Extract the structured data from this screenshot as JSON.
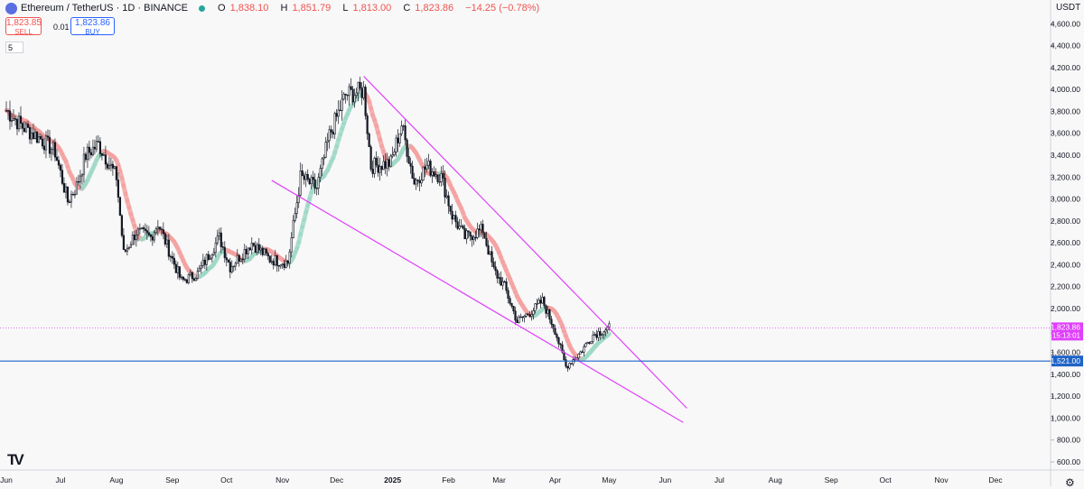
{
  "header": {
    "title": "Ethereum / TetherUS · 1D · BINANCE",
    "ohlc": [
      {
        "k": "O",
        "v": "1,838.10"
      },
      {
        "k": "H",
        "v": "1,851.79"
      },
      {
        "k": "L",
        "v": "1,813.00"
      },
      {
        "k": "C",
        "v": "1,823.86"
      }
    ],
    "change": "−14.25 (−0.78%)"
  },
  "trade": {
    "sell_price": "1,823.85",
    "sell_label": "SELL",
    "buy_price": "1,823.86",
    "buy_label": "BUY",
    "spread": "0.01",
    "ma_length": "5"
  },
  "axis_unit": "USDT",
  "colors": {
    "up": "#26a69a",
    "down": "#ef5350",
    "candle": "#131722",
    "trendline": "#e040fb",
    "price_tag": "#e040fb",
    "support": "#1e63c8",
    "ma_down": "#f4a0a0",
    "ma_up": "#9ed8c6"
  },
  "chart_data": {
    "type": "candlestick",
    "symbol": "ETHUSDT",
    "interval": "1D",
    "ylim": [
      600,
      4800
    ],
    "y_ticks": [
      600,
      800,
      1000,
      1200,
      1400,
      1600,
      1800,
      2000,
      2200,
      2400,
      2600,
      2800,
      3000,
      3200,
      3400,
      3600,
      3800,
      4000,
      4200,
      4400,
      4600
    ],
    "y_tick_labels": [
      "600.00",
      "800.00",
      "1,000.00",
      "1,200.00",
      "1,400.00",
      "1,600.00",
      "1,800.00",
      "2,000.00",
      "2,200.00",
      "2,400.00",
      "2,600.00",
      "2,800.00",
      "3,000.00",
      "3,200.00",
      "3,400.00",
      "3,600.00",
      "3,800.00",
      "4,000.00",
      "4,200.00",
      "4,400.00",
      "4,600.00"
    ],
    "x_labels": [
      "Jun",
      "Jul",
      "Aug",
      "Sep",
      "Oct",
      "Nov",
      "Dec",
      "2025",
      "Feb",
      "Mar",
      "Apr",
      "May",
      "Jun",
      "Jul",
      "Aug",
      "Sep",
      "Oct",
      "Nov",
      "Dec"
    ],
    "x_label_dates": [
      "2024-06-01",
      "2024-07-01",
      "2024-08-01",
      "2024-09-01",
      "2024-10-01",
      "2024-11-01",
      "2024-12-01",
      "2025-01-01",
      "2025-02-01",
      "2025-03-01",
      "2025-04-01",
      "2025-05-01",
      "2025-06-01",
      "2025-07-01",
      "2025-08-01",
      "2025-09-01",
      "2025-10-01",
      "2025-11-01",
      "2025-12-01"
    ],
    "series_close_path": [
      [
        "2024-06-01",
        3810
      ],
      [
        "2024-06-10",
        3660
      ],
      [
        "2024-06-20",
        3550
      ],
      [
        "2024-06-28",
        3430
      ],
      [
        "2024-07-05",
        2980
      ],
      [
        "2024-07-10",
        3120
      ],
      [
        "2024-07-15",
        3400
      ],
      [
        "2024-07-22",
        3500
      ],
      [
        "2024-08-01",
        3200
      ],
      [
        "2024-08-05",
        2500
      ],
      [
        "2024-08-12",
        2700
      ],
      [
        "2024-08-20",
        2650
      ],
      [
        "2024-08-24",
        2780
      ],
      [
        "2024-09-01",
        2450
      ],
      [
        "2024-09-06",
        2250
      ],
      [
        "2024-09-15",
        2320
      ],
      [
        "2024-09-27",
        2650
      ],
      [
        "2024-10-03",
        2380
      ],
      [
        "2024-10-15",
        2600
      ],
      [
        "2024-10-25",
        2450
      ],
      [
        "2024-11-04",
        2420
      ],
      [
        "2024-11-11",
        3200
      ],
      [
        "2024-11-20",
        3100
      ],
      [
        "2024-11-27",
        3580
      ],
      [
        "2024-12-06",
        3950
      ],
      [
        "2024-12-16",
        3990
      ],
      [
        "2024-12-20",
        3300
      ],
      [
        "2024-12-31",
        3330
      ],
      [
        "2025-01-06",
        3680
      ],
      [
        "2025-01-13",
        3150
      ],
      [
        "2025-01-20",
        3300
      ],
      [
        "2025-01-28",
        3200
      ],
      [
        "2025-02-03",
        2850
      ],
      [
        "2025-02-10",
        2650
      ],
      [
        "2025-02-20",
        2720
      ],
      [
        "2025-02-26",
        2350
      ],
      [
        "2025-03-04",
        2200
      ],
      [
        "2025-03-11",
        1880
      ],
      [
        "2025-03-20",
        1990
      ],
      [
        "2025-03-25",
        2070
      ],
      [
        "2025-04-01",
        1800
      ],
      [
        "2025-04-07",
        1470
      ],
      [
        "2025-04-15",
        1600
      ],
      [
        "2025-04-22",
        1760
      ],
      [
        "2025-05-01",
        1823.86
      ]
    ],
    "trendlines": [
      {
        "name": "upper",
        "from": [
          "2024-12-16",
          4120
        ],
        "to": [
          "2025-06-13",
          1090
        ]
      },
      {
        "name": "lower",
        "from": [
          "2024-10-26",
          3170
        ],
        "to": [
          "2025-06-11",
          960
        ]
      }
    ],
    "support_level": 1521.0,
    "last_price": "1,823.86",
    "countdown": "15:13:01",
    "support_label": "1,521.00",
    "x_range": [
      "2024-06-01",
      "2025-12-20"
    ]
  }
}
